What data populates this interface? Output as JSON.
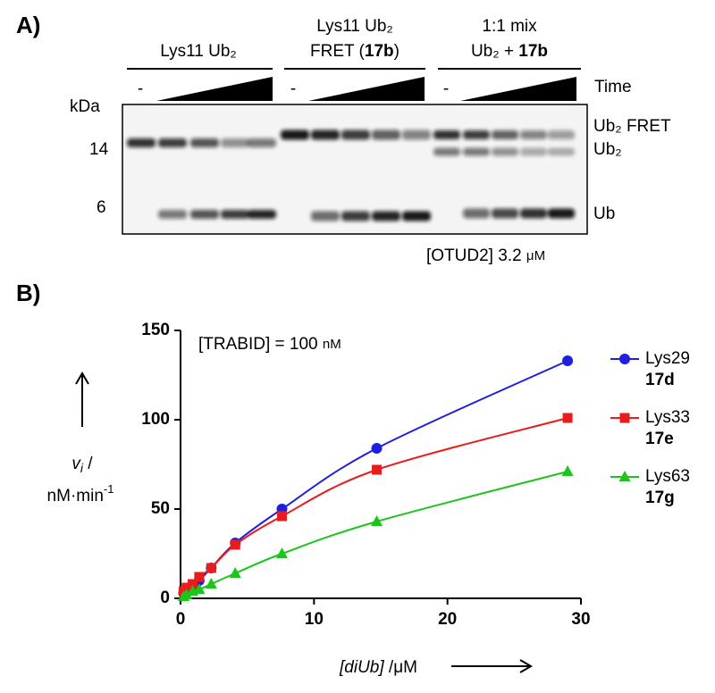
{
  "panel_a": {
    "label": "A)",
    "groups": [
      {
        "line2": "Lys11 Ub₂"
      },
      {
        "line1": "Lys11 Ub₂",
        "line2_parts": [
          "FRET (",
          "17b",
          ")"
        ]
      },
      {
        "line1": "1:1 mix",
        "line2_parts": [
          "Ub₂ + ",
          "17b"
        ]
      }
    ],
    "untreated": [
      "-",
      "-",
      "-"
    ],
    "time": "Time",
    "kda": "kDa",
    "markers": [
      "14",
      "6"
    ],
    "bands": [
      "Ub₂ FRET",
      "Ub₂",
      "Ub"
    ],
    "enzyme_parts": [
      "[OTUD2] 3.2 ",
      "μM"
    ]
  },
  "chart_data": {
    "type": "line",
    "panel_label": "B)",
    "annotation_parts": [
      "[TRABID] = 100 ",
      "nM"
    ],
    "y_label_parts": [
      "v",
      "i",
      " /"
    ],
    "y_label_unit_parts": [
      "nM·min",
      "-1"
    ],
    "x_label_parts": [
      "[diUb]",
      " /μM"
    ],
    "x": [
      0.23,
      0.45,
      0.9,
      1.4,
      2.3,
      4.1,
      7.6,
      14.7,
      29
    ],
    "series": [
      {
        "name": "Lys29",
        "compound": "17d",
        "color": "#1f1fe0",
        "marker": "circle",
        "values": [
          3,
          5,
          7,
          10,
          17,
          31,
          50,
          84,
          133
        ]
      },
      {
        "name": "Lys33",
        "compound": "17e",
        "color": "#e81c1c",
        "marker": "square",
        "values": [
          4,
          6,
          8,
          12,
          17,
          30,
          46,
          72,
          101
        ]
      },
      {
        "name": "Lys63",
        "compound": "17g",
        "color": "#1cc41c",
        "marker": "triangle",
        "values": [
          1,
          2,
          4,
          5,
          8,
          14,
          25,
          43,
          71
        ]
      }
    ],
    "xlim": [
      0,
      30
    ],
    "xticks": [
      0,
      10,
      20,
      30
    ],
    "ylim": [
      0,
      150
    ],
    "yticks": [
      0,
      50,
      100,
      150
    ]
  }
}
